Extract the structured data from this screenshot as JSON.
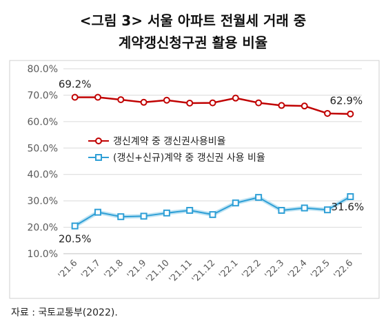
{
  "title_line1": "<그림 3> 서울 아파트 전월세 거래 중",
  "title_line2": "계약갱신청구권 활용 비율",
  "source": "자료 : 국토교통부(2022).",
  "chart_data": {
    "type": "line",
    "categories": [
      "'21.6",
      "'21.7",
      "'21.8",
      "'21.9",
      "'21.10",
      "'21.11",
      "'21.12",
      "'22.1",
      "'22.2",
      "'22.3",
      "'22.4",
      "'22.5",
      "'22.6"
    ],
    "ylim": [
      10,
      80
    ],
    "yticks": [
      10,
      20,
      30,
      40,
      50,
      60,
      70,
      80
    ],
    "ytick_labels": [
      "10.0%",
      "20.0%",
      "30.0%",
      "40.0%",
      "50.0%",
      "60.0%",
      "70.0%",
      "80.0%"
    ],
    "grid": true,
    "legend_position": "center-left",
    "series": [
      {
        "name": "갱신계약 중 갱신권사용비율",
        "color": "#c00000",
        "marker": "circle",
        "values": [
          69.2,
          69.2,
          68.3,
          67.3,
          68.1,
          67.0,
          67.1,
          68.9,
          67.1,
          66.1,
          65.9,
          63.1,
          62.9
        ]
      },
      {
        "name": "(갱신+신규)계약 중 갱신권 사용 비율",
        "color": "#2e9fd6",
        "marker": "square",
        "values": [
          20.5,
          25.7,
          24.0,
          24.2,
          25.4,
          26.4,
          24.8,
          29.2,
          31.3,
          26.4,
          27.3,
          26.6,
          31.6
        ]
      }
    ],
    "annotations": [
      {
        "text": "69.2%",
        "series": 0,
        "index": 0
      },
      {
        "text": "62.9%",
        "series": 0,
        "index": 12
      },
      {
        "text": "20.5%",
        "series": 1,
        "index": 0
      },
      {
        "text": "31.6%",
        "series": 1,
        "index": 12
      }
    ]
  }
}
